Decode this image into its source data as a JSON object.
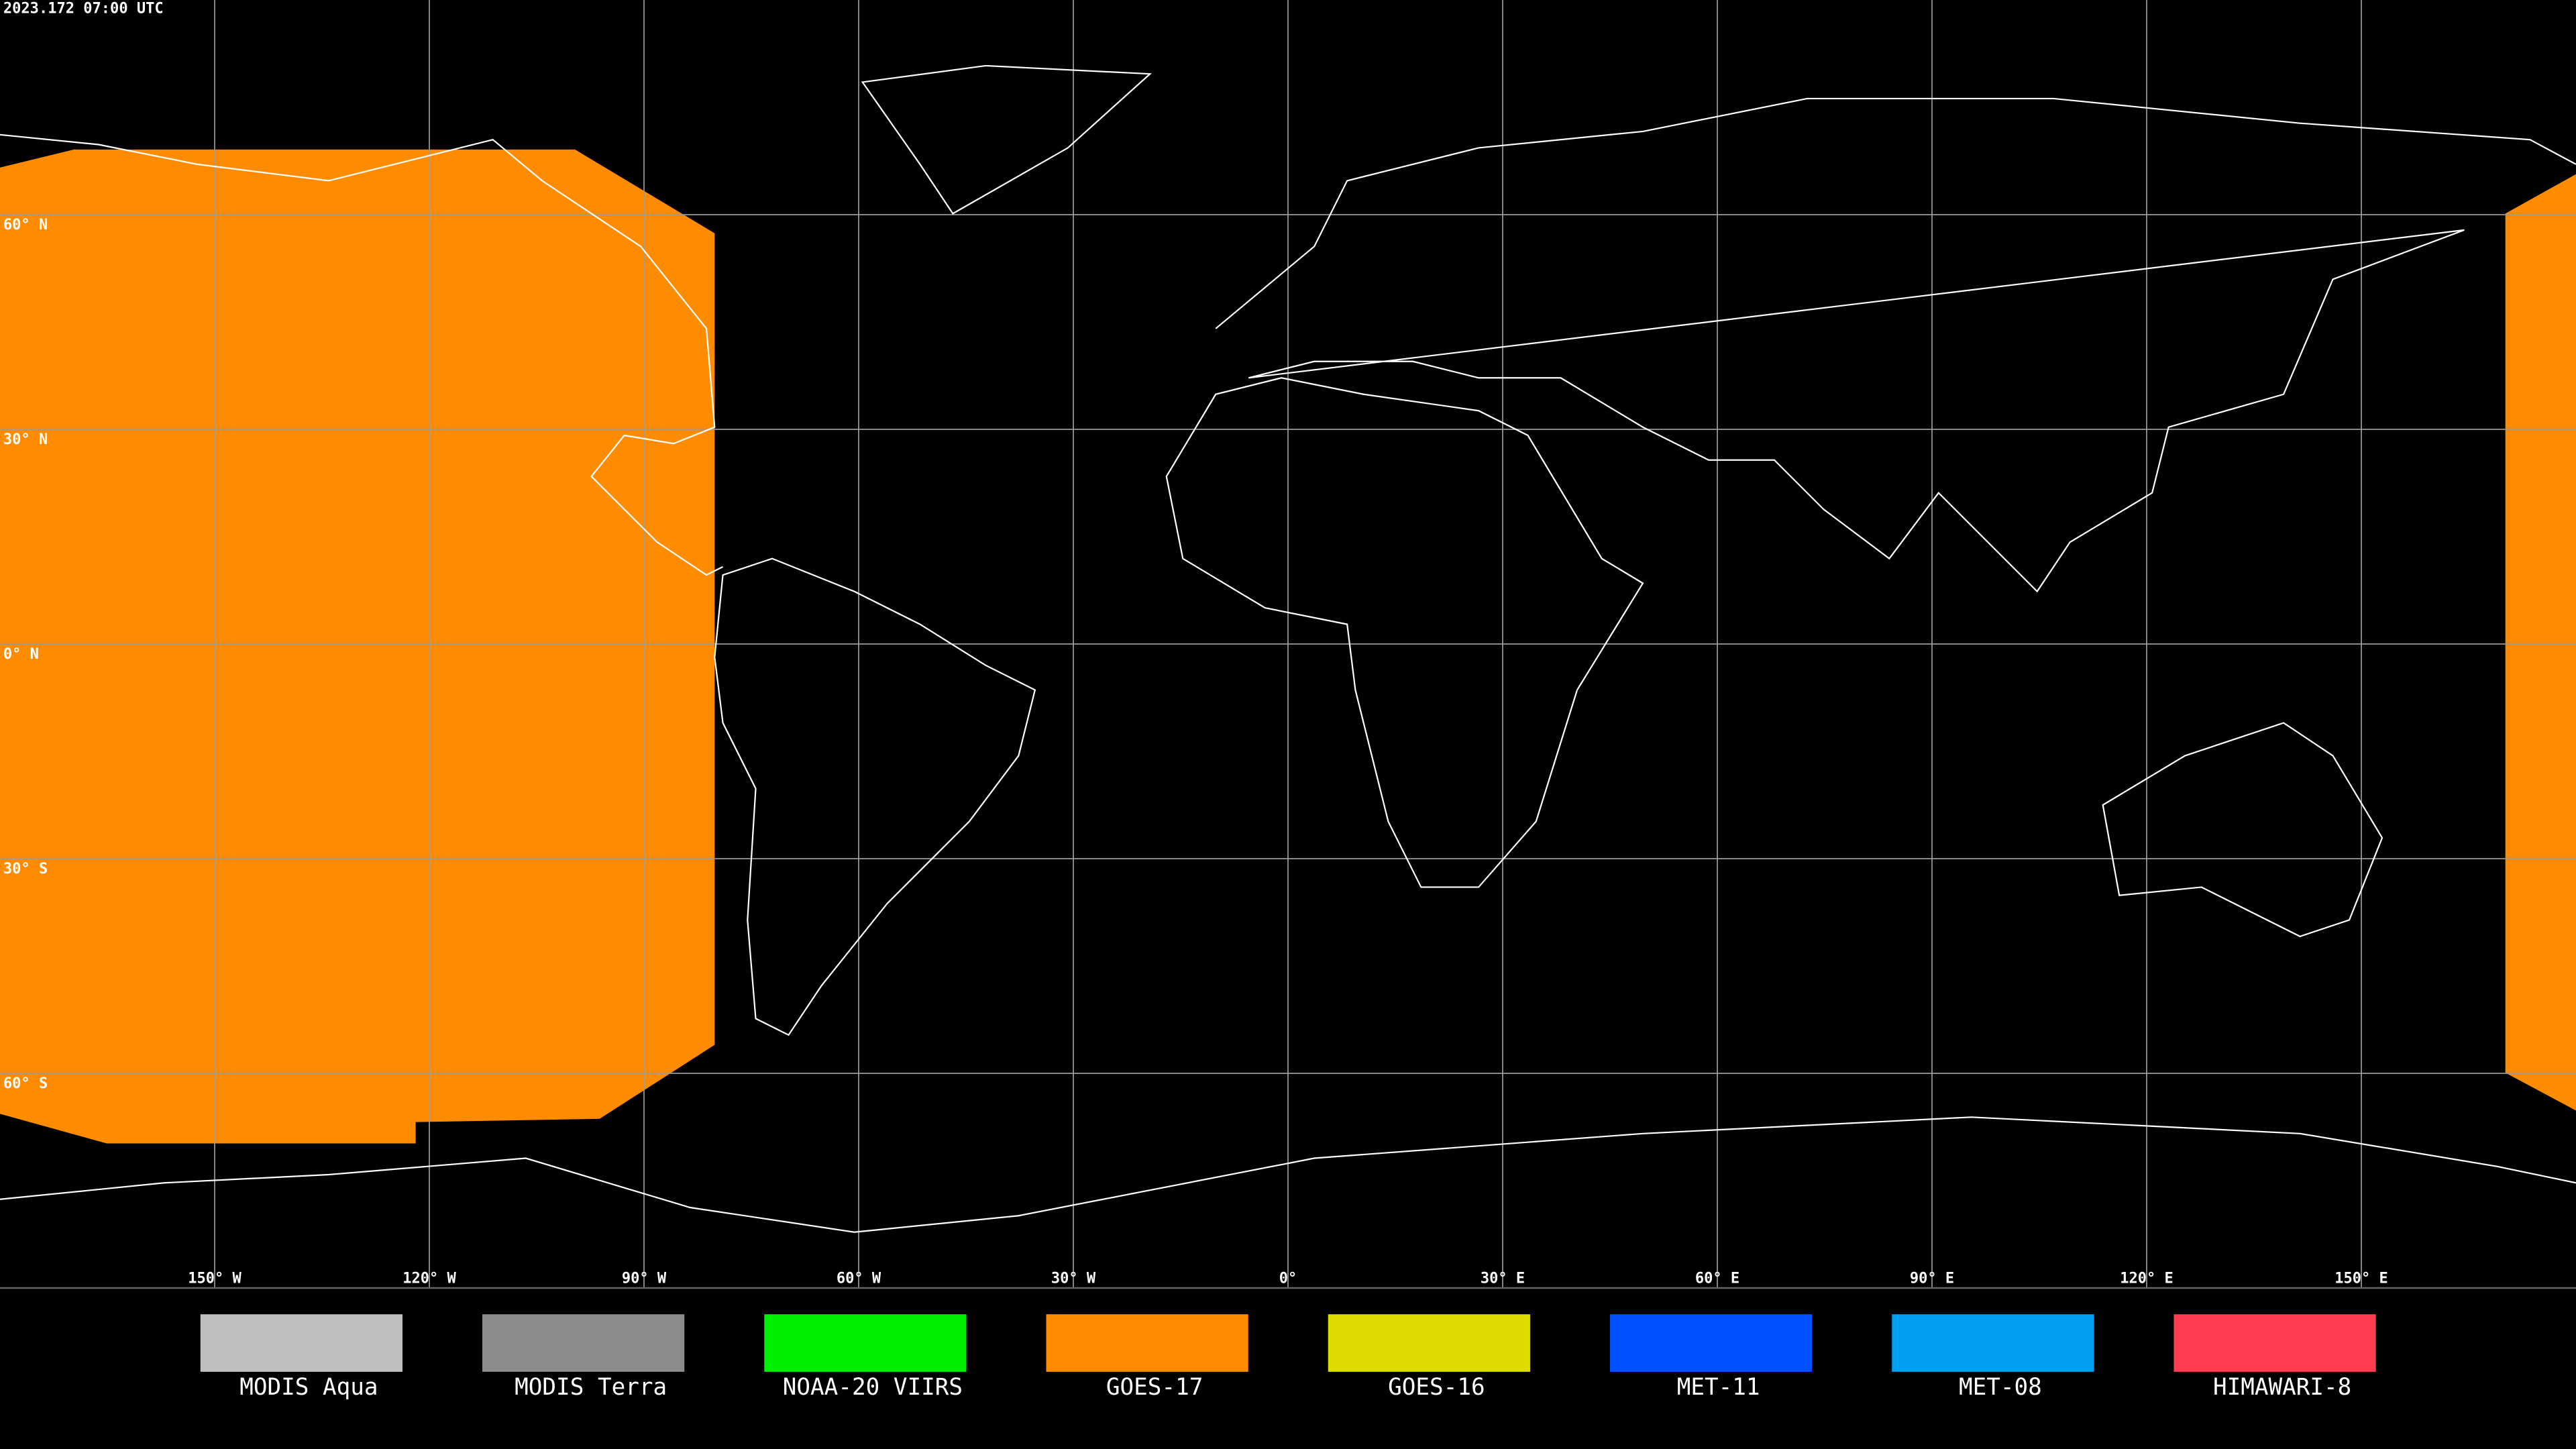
{
  "timestamp": "2023.172 07:00 UTC",
  "latitude_labels": [
    "60° N",
    "30° N",
    "0° N",
    "30° S",
    "60° S"
  ],
  "longitude_labels": [
    "150° W",
    "120° W",
    "90° W",
    "60° W",
    "30° W",
    "0°",
    "30° E",
    "60° E",
    "90° E",
    "120° E",
    "150° E"
  ],
  "legend": [
    {
      "label": "MODIS Aqua",
      "color": "#bfbfbf"
    },
    {
      "label": "MODIS Terra",
      "color": "#8c8c8c"
    },
    {
      "label": "NOAA-20 VIIRS",
      "color": "#00f000"
    },
    {
      "label": "GOES-17",
      "color": "#ff8c00"
    },
    {
      "label": "GOES-16",
      "color": "#dcdc00"
    },
    {
      "label": "MET-11",
      "color": "#0050ff"
    },
    {
      "label": "MET-08",
      "color": "#00a0f0"
    },
    {
      "label": "HIMAWARI-8",
      "color": "#ff3c50"
    }
  ]
}
